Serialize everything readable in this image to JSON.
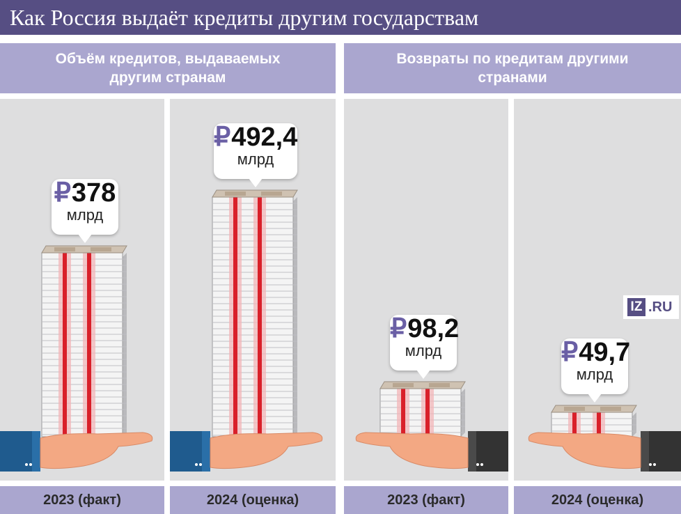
{
  "title": "Как Россия выдаёт кредиты другим государствам",
  "sections": [
    {
      "header": "Объём кредитов, выдаваемых другим странам"
    },
    {
      "header": "Возвраты по кредитам другими странами"
    }
  ],
  "logo": {
    "box": "IZ",
    "text": ".RU"
  },
  "chart_data": {
    "type": "bar",
    "title": "Как Россия выдаёт кредиты другим государствам",
    "currency_symbol": "₽",
    "unit": "млрд",
    "series": [
      {
        "name": "Объём кредитов, выдаваемых другим странам",
        "categories": [
          "2023 (факт)",
          "2024 (оценка)"
        ],
        "values": [
          378,
          492.4
        ],
        "labels": [
          "378",
          "492,4"
        ]
      },
      {
        "name": "Возвраты по кредитам другими странами",
        "categories": [
          "2023 (факт)",
          "2024 (оценка)"
        ],
        "values": [
          98.2,
          49.7
        ],
        "labels": [
          "98,2",
          "49,7"
        ]
      }
    ],
    "colors": {
      "header": "#aaa6cf",
      "title_bar": "#564e83",
      "panel": "#dededf",
      "band": "#d9202a"
    }
  }
}
